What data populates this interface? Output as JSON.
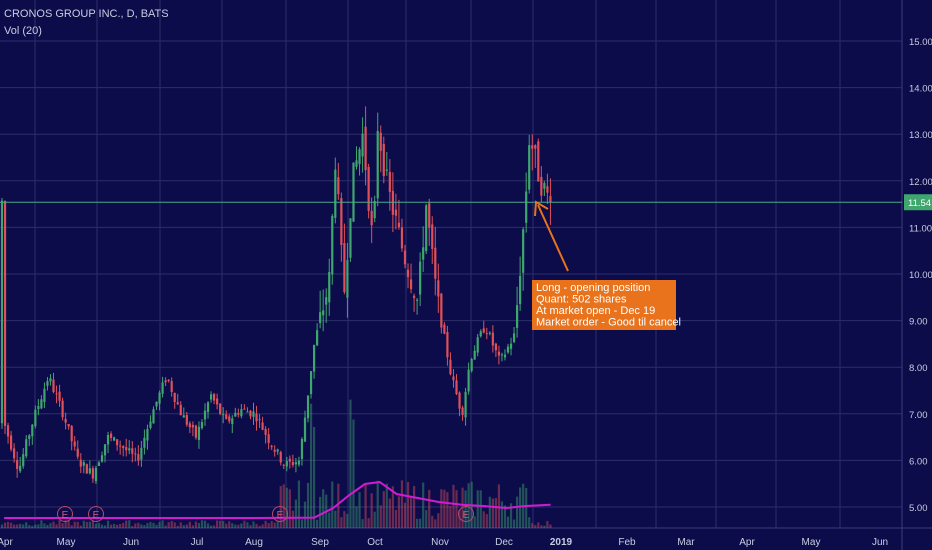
{
  "header": {
    "title": "CRONOS GROUP INC., D, BATS",
    "volume_indicator": "Vol (20)"
  },
  "colors": {
    "background": "#0c0c4a",
    "grid": "#2b2e69",
    "up": "#3fa66e",
    "down": "#e0505a",
    "volume_ma": "#d21bd0",
    "price_line": "#4aa98a",
    "annotation": "#e8731c",
    "axis_text": "#c9cde0"
  },
  "chart_data": {
    "type": "candlestick",
    "ylim": [
      4.7,
      15.55
    ],
    "y_ticks": [
      "5.00",
      "6.00",
      "7.00",
      "8.00",
      "9.00",
      "10.00",
      "11.00",
      "12.00",
      "13.00",
      "14.00",
      "15.00"
    ],
    "x_ticks": [
      "Apr",
      "May",
      "Jun",
      "Jul",
      "Aug",
      "Sep",
      "Oct",
      "Nov",
      "Dec",
      "2019",
      "Feb",
      "Mar",
      "Apr",
      "May",
      "Jun"
    ],
    "last_price": "11.54",
    "earnings_markers": [
      "E",
      "E",
      "E",
      "E"
    ],
    "annotation": {
      "lines": [
        "Long - opening position",
        "Quant: 502 shares",
        "At market open - Dec 19",
        "Market order - Good til cancel"
      ]
    },
    "price_path": [
      [
        "2018-04-02",
        6.8
      ],
      [
        "2018-04-09",
        5.8
      ],
      [
        "2018-04-16",
        6.9
      ],
      [
        "2018-04-23",
        7.8
      ],
      [
        "2018-04-30",
        7.0
      ],
      [
        "2018-05-07",
        6.0
      ],
      [
        "2018-05-14",
        5.7
      ],
      [
        "2018-05-21",
        6.5
      ],
      [
        "2018-05-28",
        6.3
      ],
      [
        "2018-06-04",
        6.0
      ],
      [
        "2018-06-11",
        7.0
      ],
      [
        "2018-06-18",
        7.8
      ],
      [
        "2018-06-25",
        7.0
      ],
      [
        "2018-07-02",
        6.5
      ],
      [
        "2018-07-09",
        7.4
      ],
      [
        "2018-07-16",
        6.8
      ],
      [
        "2018-07-23",
        7.1
      ],
      [
        "2018-07-30",
        7.0
      ],
      [
        "2018-08-06",
        6.4
      ],
      [
        "2018-08-13",
        5.9
      ],
      [
        "2018-08-20",
        6.0
      ],
      [
        "2018-08-27",
        8.5
      ],
      [
        "2018-09-03",
        9.8
      ],
      [
        "2018-09-06",
        12.5
      ],
      [
        "2018-09-10",
        9.5
      ],
      [
        "2018-09-14",
        12.0
      ],
      [
        "2018-09-19",
        13.0
      ],
      [
        "2018-09-24",
        10.5
      ],
      [
        "2018-09-26",
        13.2
      ],
      [
        "2018-10-01",
        11.8
      ],
      [
        "2018-10-08",
        10.5
      ],
      [
        "2018-10-15",
        9.4
      ],
      [
        "2018-10-19",
        11.5
      ],
      [
        "2018-10-24",
        9.5
      ],
      [
        "2018-10-31",
        7.8
      ],
      [
        "2018-11-05",
        7.0
      ],
      [
        "2018-11-09",
        8.2
      ],
      [
        "2018-11-16",
        8.9
      ],
      [
        "2018-11-23",
        8.1
      ],
      [
        "2018-11-30",
        8.7
      ],
      [
        "2018-12-05",
        11.5
      ],
      [
        "2018-12-07",
        13.0
      ],
      [
        "2018-12-12",
        12.0
      ],
      [
        "2018-12-17",
        11.54
      ]
    ],
    "volume_ma": [
      [
        "2018-04-02",
        0.05
      ],
      [
        "2018-06-01",
        0.05
      ],
      [
        "2018-08-01",
        0.05
      ],
      [
        "2018-08-27",
        0.06
      ],
      [
        "2018-09-05",
        0.3
      ],
      [
        "2018-09-12",
        0.6
      ],
      [
        "2018-09-20",
        0.9
      ],
      [
        "2018-09-27",
        0.95
      ],
      [
        "2018-10-05",
        0.65
      ],
      [
        "2018-10-15",
        0.55
      ],
      [
        "2018-10-25",
        0.45
      ],
      [
        "2018-11-05",
        0.38
      ],
      [
        "2018-11-15",
        0.35
      ],
      [
        "2018-11-26",
        0.3
      ],
      [
        "2018-12-05",
        0.35
      ],
      [
        "2018-12-17",
        0.38
      ]
    ]
  }
}
